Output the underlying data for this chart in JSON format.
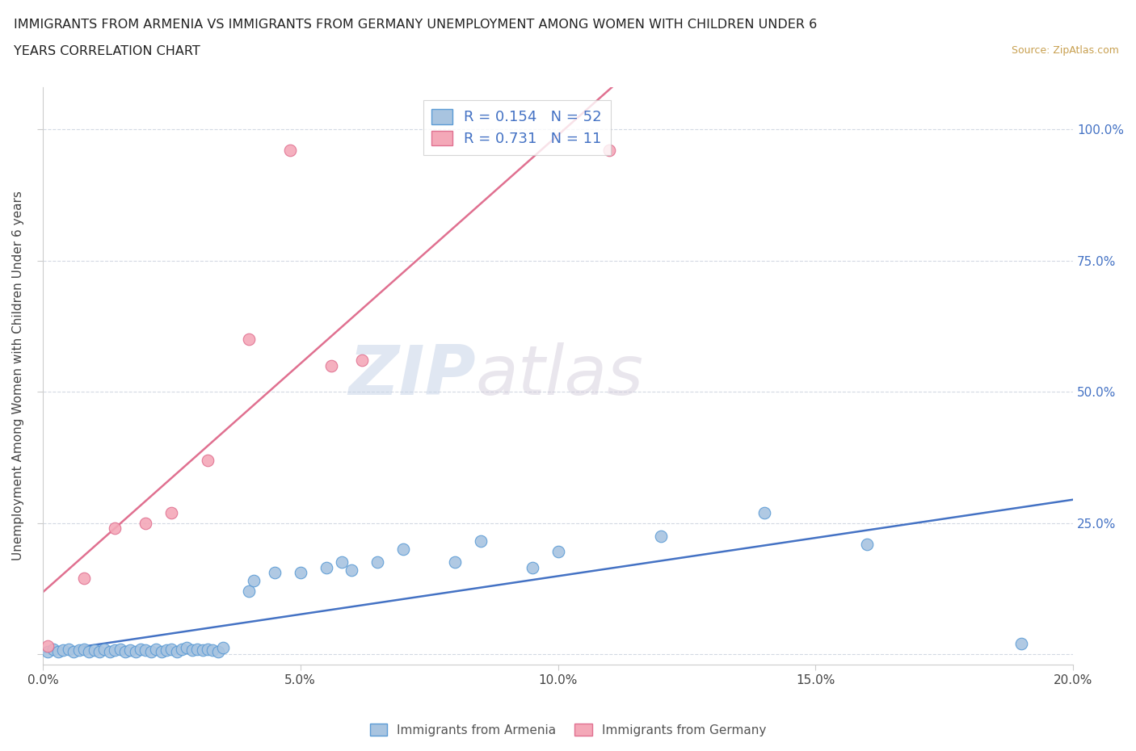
{
  "title_line1": "IMMIGRANTS FROM ARMENIA VS IMMIGRANTS FROM GERMANY UNEMPLOYMENT AMONG WOMEN WITH CHILDREN UNDER 6",
  "title_line2": "YEARS CORRELATION CHART",
  "source": "Source: ZipAtlas.com",
  "ylabel": "Unemployment Among Women with Children Under 6 years",
  "xlim": [
    0.0,
    0.2
  ],
  "ylim": [
    -0.02,
    1.08
  ],
  "xticks": [
    0.0,
    0.05,
    0.1,
    0.15,
    0.2
  ],
  "xticklabels": [
    "0.0%",
    "5.0%",
    "10.0%",
    "15.0%",
    "20.0%"
  ],
  "yticks": [
    0.0,
    0.25,
    0.5,
    0.75,
    1.0
  ],
  "yticklabels_right": [
    "",
    "25.0%",
    "50.0%",
    "75.0%",
    "100.0%"
  ],
  "armenia_color": "#a8c4e0",
  "armenia_edge": "#5b9bd5",
  "germany_color": "#f4a8b8",
  "germany_edge": "#e07090",
  "armenia_line_color": "#4472c4",
  "germany_line_color": "#e07090",
  "watermark_zip": "ZIP",
  "watermark_atlas": "atlas",
  "r_armenia": 0.154,
  "n_armenia": 52,
  "r_germany": 0.731,
  "n_germany": 11,
  "armenia_x": [
    0.001,
    0.002,
    0.003,
    0.004,
    0.005,
    0.006,
    0.007,
    0.008,
    0.009,
    0.01,
    0.011,
    0.012,
    0.013,
    0.014,
    0.015,
    0.016,
    0.017,
    0.018,
    0.019,
    0.02,
    0.021,
    0.022,
    0.023,
    0.024,
    0.025,
    0.026,
    0.027,
    0.028,
    0.029,
    0.03,
    0.031,
    0.032,
    0.033,
    0.034,
    0.035,
    0.04,
    0.041,
    0.045,
    0.05,
    0.055,
    0.058,
    0.06,
    0.065,
    0.07,
    0.08,
    0.085,
    0.095,
    0.1,
    0.12,
    0.14,
    0.16,
    0.19
  ],
  "armenia_y": [
    0.005,
    0.01,
    0.005,
    0.008,
    0.01,
    0.005,
    0.008,
    0.01,
    0.005,
    0.008,
    0.005,
    0.01,
    0.005,
    0.008,
    0.01,
    0.005,
    0.008,
    0.005,
    0.01,
    0.008,
    0.005,
    0.01,
    0.005,
    0.008,
    0.01,
    0.005,
    0.01,
    0.012,
    0.008,
    0.01,
    0.008,
    0.01,
    0.008,
    0.005,
    0.012,
    0.12,
    0.14,
    0.155,
    0.155,
    0.165,
    0.175,
    0.16,
    0.175,
    0.2,
    0.175,
    0.215,
    0.165,
    0.195,
    0.225,
    0.27,
    0.21,
    0.02
  ],
  "germany_x": [
    0.001,
    0.008,
    0.014,
    0.02,
    0.025,
    0.032,
    0.04,
    0.048,
    0.056,
    0.062,
    0.11
  ],
  "germany_y": [
    0.015,
    0.145,
    0.24,
    0.25,
    0.27,
    0.37,
    0.6,
    0.96,
    0.55,
    0.56,
    0.96
  ],
  "legend_label_armenia": "Immigrants from Armenia",
  "legend_label_germany": "Immigrants from Germany"
}
